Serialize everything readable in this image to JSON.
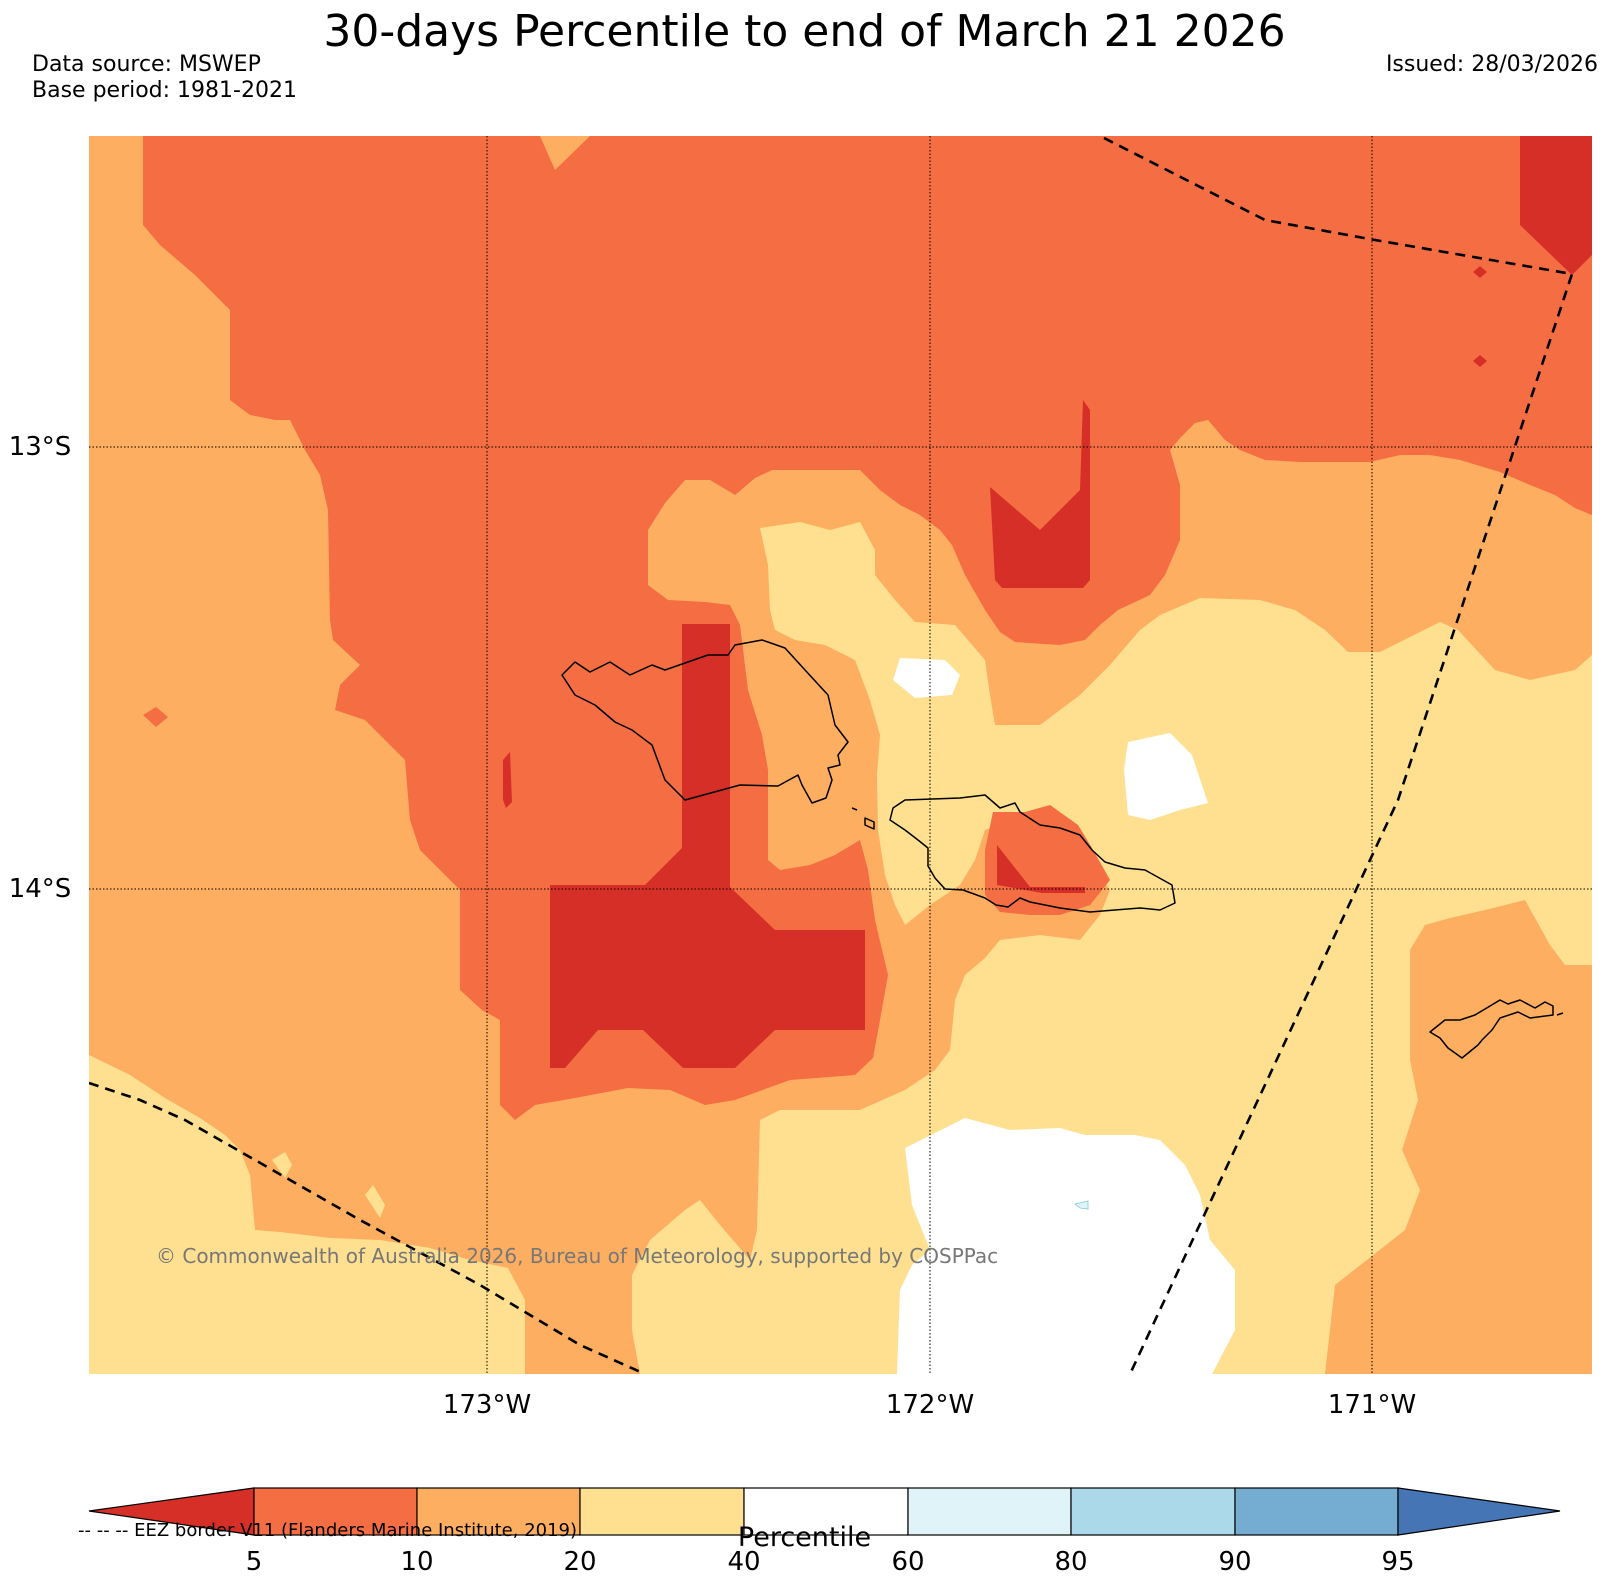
{
  "header": {
    "title": "30-days Percentile to end of March 21 2026",
    "data_source": "Data source: MSWEP",
    "base_period": "Base period: 1981-2021",
    "issued": "Issued: 28/03/2026"
  },
  "map": {
    "lat_labels": [
      "13°S",
      "14°S"
    ],
    "lon_labels": [
      "173°W",
      "172°W",
      "171°W"
    ],
    "copyright": "© Commonwealth of Australia 2026, Bureau of Meteorology, supported by COSPPac"
  },
  "colors": {
    "below_5": "#d62f27",
    "p5_10": "#f46d43",
    "p10_20": "#fdae61",
    "p20_40": "#fee090",
    "p40_60": "#ffffff",
    "p60_80": "#e0f3f8",
    "p80_90": "#abd9e9",
    "p90_95": "#74add1",
    "above_95": "#4575b4"
  },
  "colorbar": {
    "ticks": [
      "5",
      "10",
      "20",
      "40",
      "60",
      "80",
      "90",
      "95"
    ],
    "label": "Percentile"
  },
  "legend": {
    "eez": "-- -- -- EEZ border V11 (Flanders Marine Institute, 2019)"
  }
}
